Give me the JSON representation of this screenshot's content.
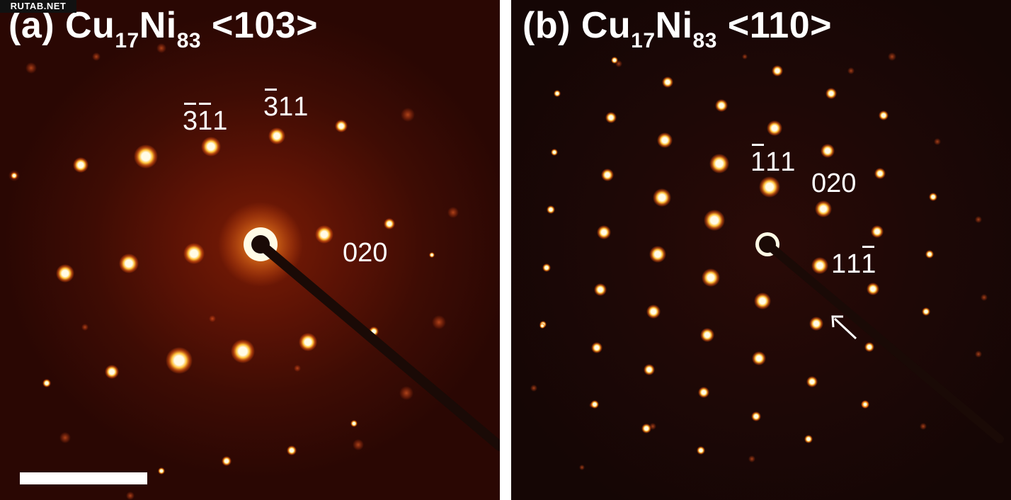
{
  "watermark": "RUTAB.NET",
  "panels": [
    {
      "id": "a",
      "title_prefix": "(a) Cu",
      "title_sub1": "17",
      "title_mid": "Ni",
      "title_sub2": "83",
      "title_suffix": " <103>",
      "labels": [
        {
          "digits": [
            {
              "d": "3",
              "bar": true
            },
            {
              "d": "1",
              "bar": true
            },
            {
              "d": "1",
              "bar": false
            }
          ]
        },
        {
          "digits": [
            {
              "d": "3",
              "bar": true
            },
            {
              "d": "1",
              "bar": false
            },
            {
              "d": "1",
              "bar": false
            }
          ]
        },
        {
          "digits": [
            {
              "d": "0",
              "bar": false
            },
            {
              "d": "2",
              "bar": false
            },
            {
              "d": "0",
              "bar": false
            }
          ]
        }
      ],
      "has_scale_bar": true
    },
    {
      "id": "b",
      "title_prefix": "(b) Cu",
      "title_sub1": "17",
      "title_mid": "Ni",
      "title_sub2": "83",
      "title_suffix": " <110>",
      "labels": [
        {
          "digits": [
            {
              "d": "1",
              "bar": true
            },
            {
              "d": "1",
              "bar": false
            },
            {
              "d": "1",
              "bar": false
            }
          ]
        },
        {
          "digits": [
            {
              "d": "0",
              "bar": false
            },
            {
              "d": "2",
              "bar": false
            },
            {
              "d": "0",
              "bar": false
            }
          ]
        },
        {
          "digits": [
            {
              "d": "1",
              "bar": false
            },
            {
              "d": "1",
              "bar": false
            },
            {
              "d": "1",
              "bar": true
            }
          ]
        }
      ],
      "has_arrow": true
    }
  ],
  "colors": {
    "spot_core": "#fffbe6",
    "spot_mid": "#ffc23a",
    "spot_halo": "#e0520e",
    "beam_stop": "#1a0a06",
    "text": "#ffffff"
  }
}
